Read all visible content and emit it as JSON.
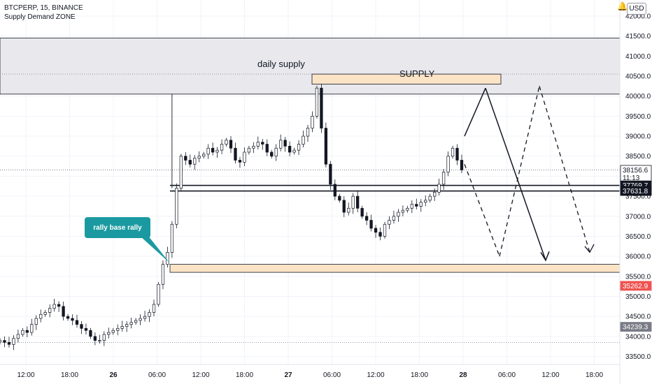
{
  "header": {
    "symbol_line": "BTCPERP, 15, BINANCE",
    "indicator_line": "Supply Demand ZONE",
    "currency": "USD"
  },
  "annotations": {
    "daily_supply": "daily supply",
    "supply": "SUPPLY",
    "callout": "rally base rally"
  },
  "price_tags": [
    {
      "value": "38156.6",
      "sub": "11:13",
      "style": "outline"
    },
    {
      "value": "37769.7",
      "style": "dark"
    },
    {
      "value": "37631.8",
      "style": "dark"
    },
    {
      "value": "35262.9",
      "style": "red"
    },
    {
      "value": "34239.3",
      "style": "gray"
    }
  ],
  "colors": {
    "up": "#131722",
    "down": "#131722",
    "zone_fill": "#fbe3c6",
    "daily_zone_fill": "#e6e6eb",
    "callout": "#1a9aa0",
    "red_tag": "#ef5350"
  },
  "chart_data": {
    "type": "candlestick",
    "title": "BTCPERP, 15, BINANCE",
    "y_ticks": [
      33500,
      34000,
      34500,
      35000,
      35500,
      36000,
      36500,
      37000,
      37500,
      38000,
      38500,
      39000,
      39500,
      40000,
      40500,
      41000,
      41500,
      42000
    ],
    "y_top_partial_label": "4",
    "ylim": [
      33300,
      42400
    ],
    "x_ticks": [
      "12:00",
      "18:00",
      "26",
      "06:00",
      "12:00",
      "18:00",
      "27",
      "06:00",
      "12:00",
      "18:00",
      "28",
      "06:00",
      "12:00",
      "18:00"
    ],
    "series_close": [
      33900,
      33850,
      33800,
      33950,
      34050,
      34150,
      34100,
      34300,
      34450,
      34550,
      34600,
      34700,
      34800,
      34750,
      34500,
      34450,
      34400,
      34300,
      34200,
      34150,
      34000,
      33900,
      33900,
      34050,
      34100,
      34150,
      34200,
      34250,
      34300,
      34350,
      34400,
      34450,
      34500,
      34600,
      34800,
      35300,
      35800,
      36100,
      36800,
      37700,
      38500,
      38400,
      38300,
      38450,
      38500,
      38550,
      38700,
      38600,
      38650,
      38800,
      38900,
      38700,
      38400,
      38350,
      38600,
      38700,
      38750,
      38850,
      38800,
      38600,
      38500,
      38700,
      38900,
      38750,
      38600,
      38650,
      38800,
      39000,
      39200,
      39500,
      40200,
      39200,
      38300,
      37800,
      37500,
      37400,
      37100,
      37200,
      37500,
      37200,
      37000,
      36900,
      36700,
      36600,
      36500,
      36800,
      36900,
      37000,
      37100,
      37150,
      37200,
      37300,
      37250,
      37350,
      37400,
      37500,
      37600,
      37800,
      38100,
      38500,
      38700,
      38400,
      38156.6
    ],
    "horizontal_levels": [
      37769.7,
      37631.8
    ],
    "zones": [
      {
        "name": "daily supply",
        "low": 40050,
        "high": 41450
      },
      {
        "name": "SUPPLY",
        "low": 40300,
        "high": 40550
      },
      {
        "name": "demand",
        "low": 35600,
        "high": 35800
      }
    ],
    "projection_solid": [
      [
        39000,
        40200
      ],
      [
        40200,
        35900
      ]
    ],
    "projection_dashed": [
      [
        38300,
        36000
      ],
      [
        36000,
        40250
      ],
      [
        40250,
        36100
      ]
    ]
  }
}
